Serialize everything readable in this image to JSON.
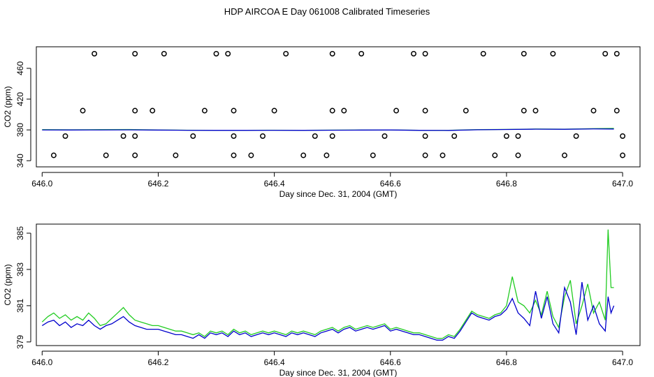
{
  "title": "HDP AIRCOA E  Day 061008  Calibrated Timeseries",
  "colors": {
    "series_a": "#22cc22",
    "series_b": "#0000cc",
    "points": "#000000"
  },
  "chart_data": [
    {
      "type": "scatter",
      "xlabel": "Day since Dec. 31, 2004 (GMT)",
      "ylabel": "CO2 (ppm)",
      "xlim": [
        645.99,
        647.03
      ],
      "ylim": [
        332,
        488
      ],
      "x_ticks": [
        "646.0",
        "646.2",
        "646.4",
        "646.6",
        "646.8",
        "647.0"
      ],
      "y_ticks": [
        "340",
        "380",
        "420",
        "460"
      ],
      "grid": false,
      "calibration_points": {
        "x": [
          646.09,
          646.16,
          646.21,
          646.3,
          646.32,
          646.42,
          646.5,
          646.55,
          646.64,
          646.66,
          646.76,
          646.83,
          646.88,
          646.97,
          646.99,
          646.07,
          646.16,
          646.19,
          646.28,
          646.33,
          646.4,
          646.5,
          646.52,
          646.61,
          646.66,
          646.73,
          646.83,
          646.85,
          646.95,
          646.99,
          646.04,
          646.14,
          646.16,
          646.26,
          646.33,
          646.38,
          646.47,
          646.5,
          646.59,
          646.66,
          646.71,
          646.8,
          646.82,
          646.92,
          647.0,
          646.02,
          646.11,
          646.16,
          646.23,
          646.33,
          646.36,
          646.45,
          646.49,
          646.57,
          646.66,
          646.69,
          646.78,
          646.82,
          646.9,
          647.0
        ],
        "y": [
          479,
          479,
          479,
          479,
          479,
          479,
          479,
          479,
          479,
          479,
          479,
          479,
          479,
          479,
          479,
          405,
          405,
          405,
          405,
          405,
          405,
          405,
          405,
          405,
          405,
          405,
          405,
          405,
          405,
          405,
          372,
          372,
          372,
          372,
          372,
          372,
          372,
          372,
          372,
          372,
          372,
          372,
          372,
          372,
          372,
          347,
          347,
          347,
          347,
          347,
          347,
          347,
          347,
          347,
          347,
          347,
          347,
          347,
          347,
          347
        ]
      },
      "series": [
        {
          "x": [
            646.0,
            646.05,
            646.1,
            646.15,
            646.2,
            646.25,
            646.3,
            646.35,
            646.4,
            646.45,
            646.5,
            646.55,
            646.6,
            646.65,
            646.7,
            646.75,
            646.8,
            646.85,
            646.9,
            646.95,
            646.985
          ],
          "y": [
            380.3,
            380.2,
            380.3,
            380.5,
            379.9,
            379.6,
            379.5,
            379.5,
            379.6,
            379.5,
            379.7,
            379.9,
            380.0,
            379.5,
            379.4,
            380.3,
            380.6,
            381.2,
            381.0,
            381.6,
            382.0
          ]
        },
        {
          "x": [
            646.0,
            646.05,
            646.1,
            646.15,
            646.2,
            646.25,
            646.3,
            646.35,
            646.4,
            646.45,
            646.5,
            646.55,
            646.6,
            646.65,
            646.7,
            646.75,
            646.8,
            646.85,
            646.9,
            646.95,
            646.985
          ],
          "y": [
            380.0,
            379.9,
            380.0,
            380.1,
            379.8,
            379.5,
            379.4,
            379.4,
            379.5,
            379.4,
            379.6,
            379.8,
            379.9,
            379.4,
            379.3,
            380.2,
            380.5,
            381.0,
            380.8,
            381.3,
            381.2
          ]
        }
      ]
    },
    {
      "type": "line",
      "xlabel": "Day since Dec. 31, 2004 (GMT)",
      "ylabel": "CO2 (ppm)",
      "xlim": [
        645.99,
        647.03
      ],
      "ylim": [
        378.8,
        385.5
      ],
      "x_ticks": [
        "646.0",
        "646.2",
        "646.4",
        "646.6",
        "646.8",
        "647.0"
      ],
      "y_ticks": [
        "379",
        "381",
        "383",
        "385"
      ],
      "grid": false,
      "series": [
        {
          "x": [
            646.0,
            646.01,
            646.02,
            646.03,
            646.04,
            646.05,
            646.06,
            646.07,
            646.08,
            646.09,
            646.1,
            646.11,
            646.12,
            646.13,
            646.14,
            646.15,
            646.16,
            646.17,
            646.18,
            646.19,
            646.2,
            646.21,
            646.22,
            646.23,
            646.24,
            646.25,
            646.26,
            646.27,
            646.28,
            646.29,
            646.3,
            646.31,
            646.32,
            646.33,
            646.34,
            646.35,
            646.36,
            646.37,
            646.38,
            646.39,
            646.4,
            646.41,
            646.42,
            646.43,
            646.44,
            646.45,
            646.46,
            646.47,
            646.48,
            646.49,
            646.5,
            646.51,
            646.52,
            646.53,
            646.54,
            646.55,
            646.56,
            646.57,
            646.58,
            646.59,
            646.6,
            646.61,
            646.62,
            646.63,
            646.64,
            646.65,
            646.66,
            646.67,
            646.68,
            646.69,
            646.7,
            646.71,
            646.72,
            646.73,
            646.74,
            646.75,
            646.76,
            646.77,
            646.78,
            646.79,
            646.8,
            646.81,
            646.82,
            646.83,
            646.84,
            646.85,
            646.86,
            646.87,
            646.88,
            646.89,
            646.9,
            646.91,
            646.92,
            646.93,
            646.94,
            646.95,
            646.96,
            646.97,
            646.975,
            646.98,
            646.985
          ],
          "y": [
            380.1,
            380.4,
            380.6,
            380.3,
            380.5,
            380.2,
            380.4,
            380.2,
            380.6,
            380.3,
            379.9,
            380.0,
            380.3,
            380.6,
            380.9,
            380.5,
            380.2,
            380.1,
            380.0,
            379.9,
            379.9,
            379.8,
            379.7,
            379.6,
            379.6,
            379.5,
            379.4,
            379.5,
            379.3,
            379.6,
            379.5,
            379.6,
            379.4,
            379.7,
            379.5,
            379.6,
            379.4,
            379.5,
            379.6,
            379.5,
            379.6,
            379.5,
            379.4,
            379.6,
            379.5,
            379.6,
            379.5,
            379.4,
            379.6,
            379.7,
            379.8,
            379.6,
            379.8,
            379.9,
            379.7,
            379.8,
            379.9,
            379.8,
            379.9,
            380.0,
            379.7,
            379.8,
            379.7,
            379.6,
            379.5,
            379.5,
            379.4,
            379.3,
            379.2,
            379.2,
            379.4,
            379.3,
            379.7,
            380.2,
            380.7,
            380.5,
            380.4,
            380.3,
            380.5,
            380.6,
            381.0,
            382.6,
            381.2,
            381.0,
            380.6,
            381.3,
            380.5,
            381.8,
            380.4,
            379.8,
            381.5,
            382.4,
            380.0,
            381.0,
            382.2,
            380.6,
            381.2,
            380.2,
            385.2,
            382.0,
            382.0
          ]
        },
        {
          "x": [
            646.0,
            646.01,
            646.02,
            646.03,
            646.04,
            646.05,
            646.06,
            646.07,
            646.08,
            646.09,
            646.1,
            646.11,
            646.12,
            646.13,
            646.14,
            646.15,
            646.16,
            646.17,
            646.18,
            646.19,
            646.2,
            646.21,
            646.22,
            646.23,
            646.24,
            646.25,
            646.26,
            646.27,
            646.28,
            646.29,
            646.3,
            646.31,
            646.32,
            646.33,
            646.34,
            646.35,
            646.36,
            646.37,
            646.38,
            646.39,
            646.4,
            646.41,
            646.42,
            646.43,
            646.44,
            646.45,
            646.46,
            646.47,
            646.48,
            646.49,
            646.5,
            646.51,
            646.52,
            646.53,
            646.54,
            646.55,
            646.56,
            646.57,
            646.58,
            646.59,
            646.6,
            646.61,
            646.62,
            646.63,
            646.64,
            646.65,
            646.66,
            646.67,
            646.68,
            646.69,
            646.7,
            646.71,
            646.72,
            646.73,
            646.74,
            646.75,
            646.76,
            646.77,
            646.78,
            646.79,
            646.8,
            646.81,
            646.82,
            646.83,
            646.84,
            646.85,
            646.86,
            646.87,
            646.88,
            646.89,
            646.9,
            646.91,
            646.92,
            646.93,
            646.94,
            646.95,
            646.96,
            646.97,
            646.975,
            646.98,
            646.985
          ],
          "y": [
            379.9,
            380.1,
            380.2,
            379.9,
            380.1,
            379.8,
            380.0,
            379.9,
            380.2,
            379.9,
            379.7,
            379.9,
            380.0,
            380.2,
            380.4,
            380.1,
            379.9,
            379.8,
            379.7,
            379.7,
            379.7,
            379.6,
            379.5,
            379.4,
            379.4,
            379.3,
            379.2,
            379.4,
            379.2,
            379.5,
            379.4,
            379.5,
            379.3,
            379.6,
            379.4,
            379.5,
            379.3,
            379.4,
            379.5,
            379.4,
            379.5,
            379.4,
            379.3,
            379.5,
            379.4,
            379.5,
            379.4,
            379.3,
            379.5,
            379.6,
            379.7,
            379.5,
            379.7,
            379.8,
            379.6,
            379.7,
            379.8,
            379.7,
            379.8,
            379.9,
            379.6,
            379.7,
            379.6,
            379.5,
            379.4,
            379.4,
            379.3,
            379.2,
            379.1,
            379.1,
            379.3,
            379.2,
            379.6,
            380.1,
            380.6,
            380.4,
            380.3,
            380.2,
            380.4,
            380.5,
            380.8,
            381.4,
            380.6,
            380.3,
            379.9,
            381.8,
            380.3,
            381.5,
            380.0,
            379.5,
            382.0,
            381.2,
            379.4,
            382.3,
            380.2,
            381.0,
            380.0,
            379.6,
            381.5,
            380.6,
            381.0
          ]
        }
      ]
    }
  ]
}
